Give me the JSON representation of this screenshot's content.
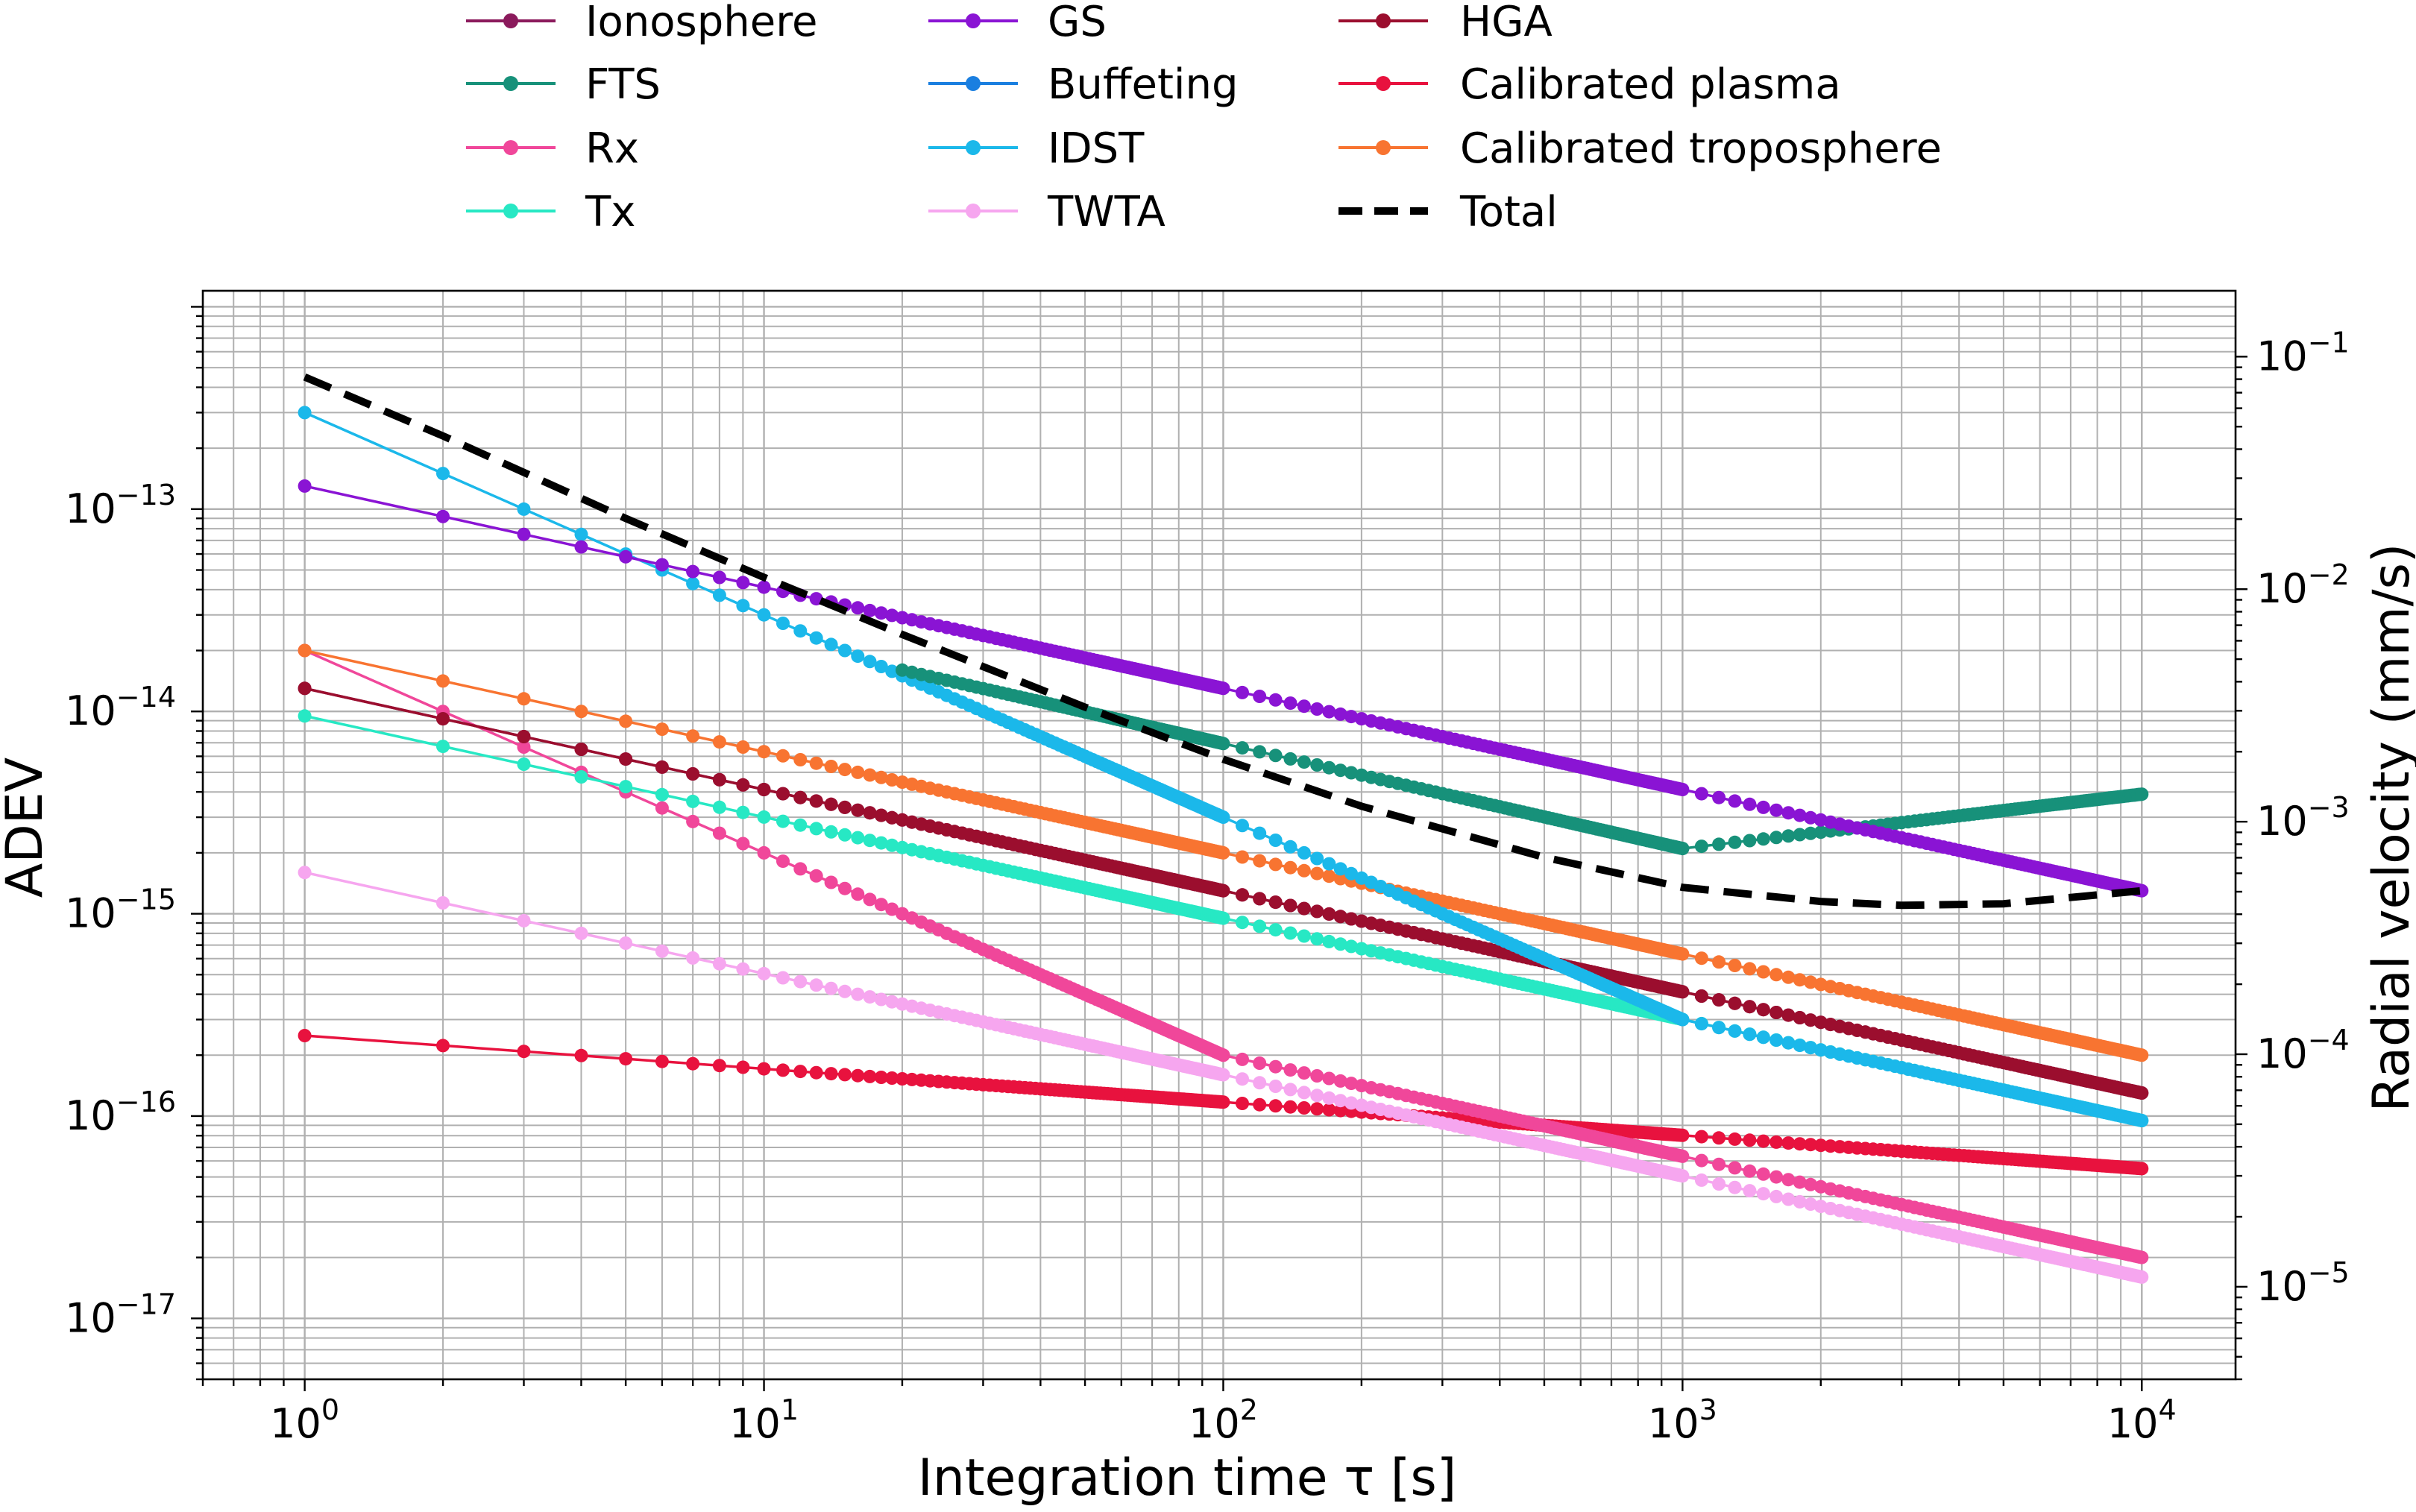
{
  "chart_data": {
    "type": "line",
    "xlabel": "Integration time τ [s]",
    "ylabel": "ADEV",
    "y2label": "Radial velocity (mm/s)",
    "xscale": "log",
    "yscale": "log",
    "xlim": [
      0.6,
      16000
    ],
    "ylim": [
      5e-18,
      1.2e-12
    ],
    "y2lim": [
      4e-06,
      0.192
    ],
    "grid": true,
    "legend_position": "top-center (above plot, 3 columns)",
    "x_ticks": [
      {
        "base": "10",
        "exp": "0",
        "value": 1
      },
      {
        "base": "10",
        "exp": "1",
        "value": 10
      },
      {
        "base": "10",
        "exp": "2",
        "value": 100
      },
      {
        "base": "10",
        "exp": "3",
        "value": 1000
      },
      {
        "base": "10",
        "exp": "4",
        "value": 10000
      }
    ],
    "y_ticks": [
      {
        "base": "10",
        "exp": "−13",
        "value": 1e-13
      },
      {
        "base": "10",
        "exp": "−14",
        "value": 1e-14
      },
      {
        "base": "10",
        "exp": "−15",
        "value": 1e-15
      },
      {
        "base": "10",
        "exp": "−16",
        "value": 1e-16
      },
      {
        "base": "10",
        "exp": "−17",
        "value": 1e-17
      }
    ],
    "y2_ticks": [
      {
        "base": "10",
        "exp": "−1",
        "value": 0.1
      },
      {
        "base": "10",
        "exp": "−2",
        "value": 0.01
      },
      {
        "base": "10",
        "exp": "−3",
        "value": 0.001
      },
      {
        "base": "10",
        "exp": "−4",
        "value": 0.0001
      },
      {
        "base": "10",
        "exp": "−5",
        "value": 1e-05
      }
    ],
    "series": [
      {
        "name": "Ionosphere",
        "color": "#8b1a5c",
        "style": "marker",
        "segments": [
          {
            "from": [
              1,
              1.3e-14
            ],
            "to": [
              10000,
              1.3e-16
            ]
          }
        ]
      },
      {
        "name": "FTS",
        "color": "#17917a",
        "style": "marker",
        "segments": [
          {
            "from": [
              20,
              1.6e-14
            ],
            "to": [
              1000,
              2.1e-15
            ]
          },
          {
            "from": [
              1000,
              2.1e-15
            ],
            "to": [
              10000,
              3.9e-15
            ]
          }
        ]
      },
      {
        "name": "Rx",
        "color": "#f0479a",
        "style": "marker",
        "segments": [
          {
            "from": [
              1,
              2e-14
            ],
            "to": [
              100,
              2e-16
            ]
          },
          {
            "from": [
              100,
              2e-16
            ],
            "to": [
              10000,
              2e-17
            ]
          }
        ]
      },
      {
        "name": "Tx",
        "color": "#27e8c4",
        "style": "marker",
        "segments": [
          {
            "from": [
              1,
              9.5e-15
            ],
            "to": [
              10000,
              9.5e-17
            ]
          }
        ]
      },
      {
        "name": "GS",
        "color": "#8a14d4",
        "style": "marker",
        "segments": [
          {
            "from": [
              1,
              1.3e-13
            ],
            "to": [
              10000,
              1.3e-15
            ]
          }
        ]
      },
      {
        "name": "Buffeting",
        "color": "#1a7fe0",
        "style": "marker",
        "segments": []
      },
      {
        "name": "IDST",
        "color": "#1bb8ea",
        "style": "marker",
        "segments": [
          {
            "from": [
              1,
              3e-13
            ],
            "to": [
              20,
              1.5e-14
            ]
          },
          {
            "from": [
              20,
              1.5e-14
            ],
            "to": [
              1000,
              3e-16
            ]
          },
          {
            "from": [
              1000,
              3e-16
            ],
            "to": [
              10000,
              9.5e-17
            ]
          }
        ]
      },
      {
        "name": "TWTA",
        "color": "#f6a6ef",
        "style": "marker",
        "segments": [
          {
            "from": [
              1,
              1.6e-15
            ],
            "to": [
              10000,
              1.6e-17
            ]
          }
        ]
      },
      {
        "name": "HGA",
        "color": "#9b0e2e",
        "style": "marker",
        "segments": [
          {
            "from": [
              1,
              1.3e-14
            ],
            "to": [
              10000,
              1.3e-16
            ]
          }
        ]
      },
      {
        "name": "Calibrated plasma",
        "color": "#e8123e",
        "style": "marker",
        "segments": [
          {
            "from": [
              1,
              2.5e-16
            ],
            "to": [
              10000,
              5.5e-17
            ]
          }
        ]
      },
      {
        "name": "Calibrated troposphere",
        "color": "#f87431",
        "style": "marker",
        "segments": [
          {
            "from": [
              1,
              2e-14
            ],
            "to": [
              10000,
              2e-16
            ]
          }
        ]
      },
      {
        "name": "Total",
        "color": "#000000",
        "style": "dashed",
        "points": [
          [
            1,
            4.5e-13
          ],
          [
            2,
            2.3e-13
          ],
          [
            5,
            9e-14
          ],
          [
            10,
            4.6e-14
          ],
          [
            20,
            2.4e-14
          ],
          [
            50,
            1.05e-14
          ],
          [
            100,
            5.8e-15
          ],
          [
            200,
            3.4e-15
          ],
          [
            500,
            1.9e-15
          ],
          [
            1000,
            1.35e-15
          ],
          [
            2000,
            1.15e-15
          ],
          [
            3000,
            1.1e-15
          ],
          [
            5000,
            1.12e-15
          ],
          [
            10000,
            1.3e-15
          ]
        ]
      }
    ]
  }
}
